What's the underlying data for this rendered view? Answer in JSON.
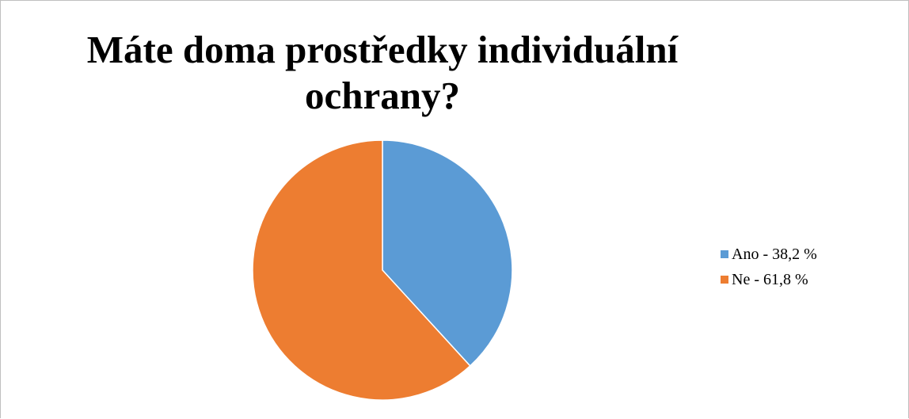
{
  "chart_data": {
    "type": "pie",
    "title_lines": [
      "Máte doma prostředky individuální",
      "ochrany?"
    ],
    "categories": [
      "Ano - 38,2 %",
      "Ne - 61,8 %"
    ],
    "values": [
      38.2,
      61.8
    ],
    "colors": [
      "#5b9bd5",
      "#ed7d31"
    ],
    "legend_position": "right"
  }
}
